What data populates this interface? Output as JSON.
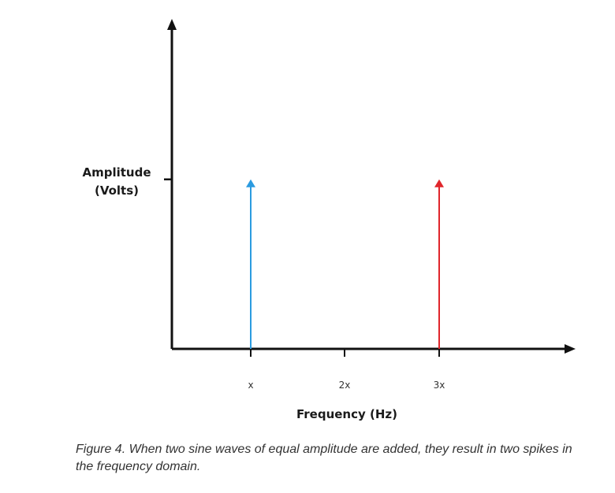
{
  "chart_data": {
    "type": "bar",
    "title": "",
    "ylabel_lines": [
      "Amplitude",
      "(Volts)"
    ],
    "xlabel": "Frequency (Hz)",
    "categories": [
      "x",
      "2x",
      "3x"
    ],
    "series": [
      {
        "values": [
          1,
          0,
          1
        ]
      }
    ],
    "spikes": [
      {
        "category": "x",
        "amplitude": 1,
        "color": "#2b9be0"
      },
      {
        "category": "3x",
        "amplitude": 1,
        "color": "#e0262b"
      }
    ],
    "y_tick_marked_amplitude": 1,
    "ylim": [
      0,
      1.9
    ],
    "grid": false,
    "legend": "none"
  },
  "caption": "Figure 4. When two sine waves of equal amplitude are added, they result in two spikes in the frequency domain.",
  "colors": {
    "axis": "#111111",
    "spike_1": "#2b9be0",
    "spike_2": "#e0262b"
  }
}
